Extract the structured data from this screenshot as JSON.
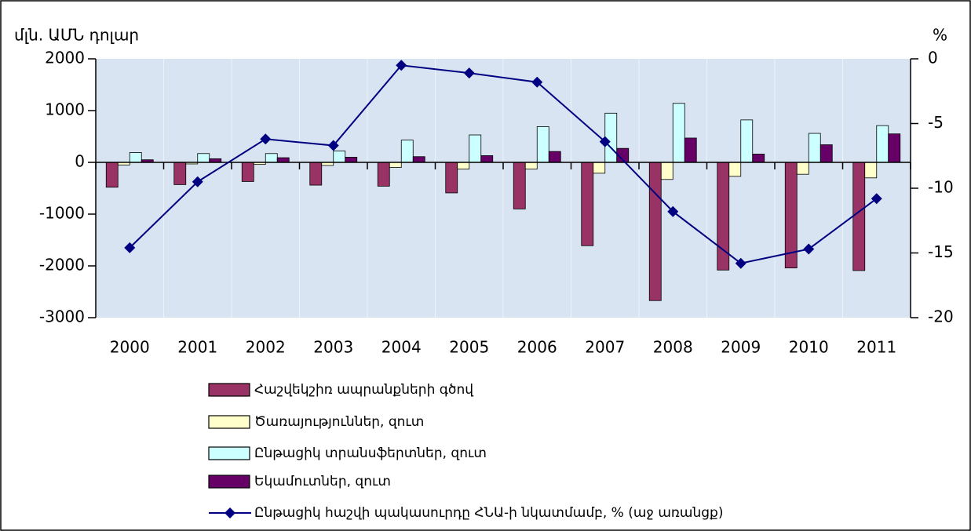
{
  "chart_data": {
    "type": "bar_line",
    "y_label": "մլն. ԱՄՆ դոլար",
    "y2_label": "%",
    "categories": [
      "2000",
      "2001",
      "2002",
      "2003",
      "2004",
      "2005",
      "2006",
      "2007",
      "2008",
      "2009",
      "2010",
      "2011"
    ],
    "series": [
      {
        "name": "Հաշվեկշիռ ապրանքների գծով",
        "color": "#993366",
        "type": "bar",
        "values": [
          -480,
          -430,
          -370,
          -440,
          -460,
          -590,
          -900,
          -1610,
          -2670,
          -2080,
          -2040,
          -2090
        ]
      },
      {
        "name": "Ծառայություններ, զուտ",
        "color": "#ffffcc",
        "type": "bar",
        "values": [
          -50,
          -30,
          -40,
          -60,
          -100,
          -130,
          -130,
          -210,
          -330,
          -270,
          -230,
          -300
        ]
      },
      {
        "name": "Ընթացիկ տրանսֆերտներ, զուտ",
        "color": "#ccffff",
        "type": "bar",
        "values": [
          190,
          170,
          170,
          220,
          430,
          530,
          690,
          950,
          1140,
          820,
          560,
          710
        ]
      },
      {
        "name": "Եկամուտներ, զուտ",
        "color": "#660066",
        "type": "bar",
        "values": [
          50,
          70,
          90,
          100,
          110,
          130,
          210,
          270,
          470,
          160,
          340,
          550
        ]
      },
      {
        "name": "Ընթացիկ հաշվի պակասուրդը ՀՆԱ-ի նկատմամբ, % (աջ առանցք)",
        "color": "#000080",
        "type": "line",
        "axis": "y2",
        "values": [
          -14.6,
          -9.5,
          -6.2,
          -6.7,
          -0.5,
          -1.1,
          -1.8,
          -6.4,
          -11.8,
          -15.8,
          -14.7,
          -10.8
        ]
      }
    ],
    "ylim": [
      -3000,
      2000
    ],
    "yticks": [
      2000,
      1000,
      0,
      -1000,
      -2000,
      -3000
    ],
    "y2lim": [
      -20,
      0
    ],
    "y2ticks": [
      0,
      -5,
      -10,
      -15,
      -20
    ],
    "grid": false,
    "legend": "bottom"
  }
}
